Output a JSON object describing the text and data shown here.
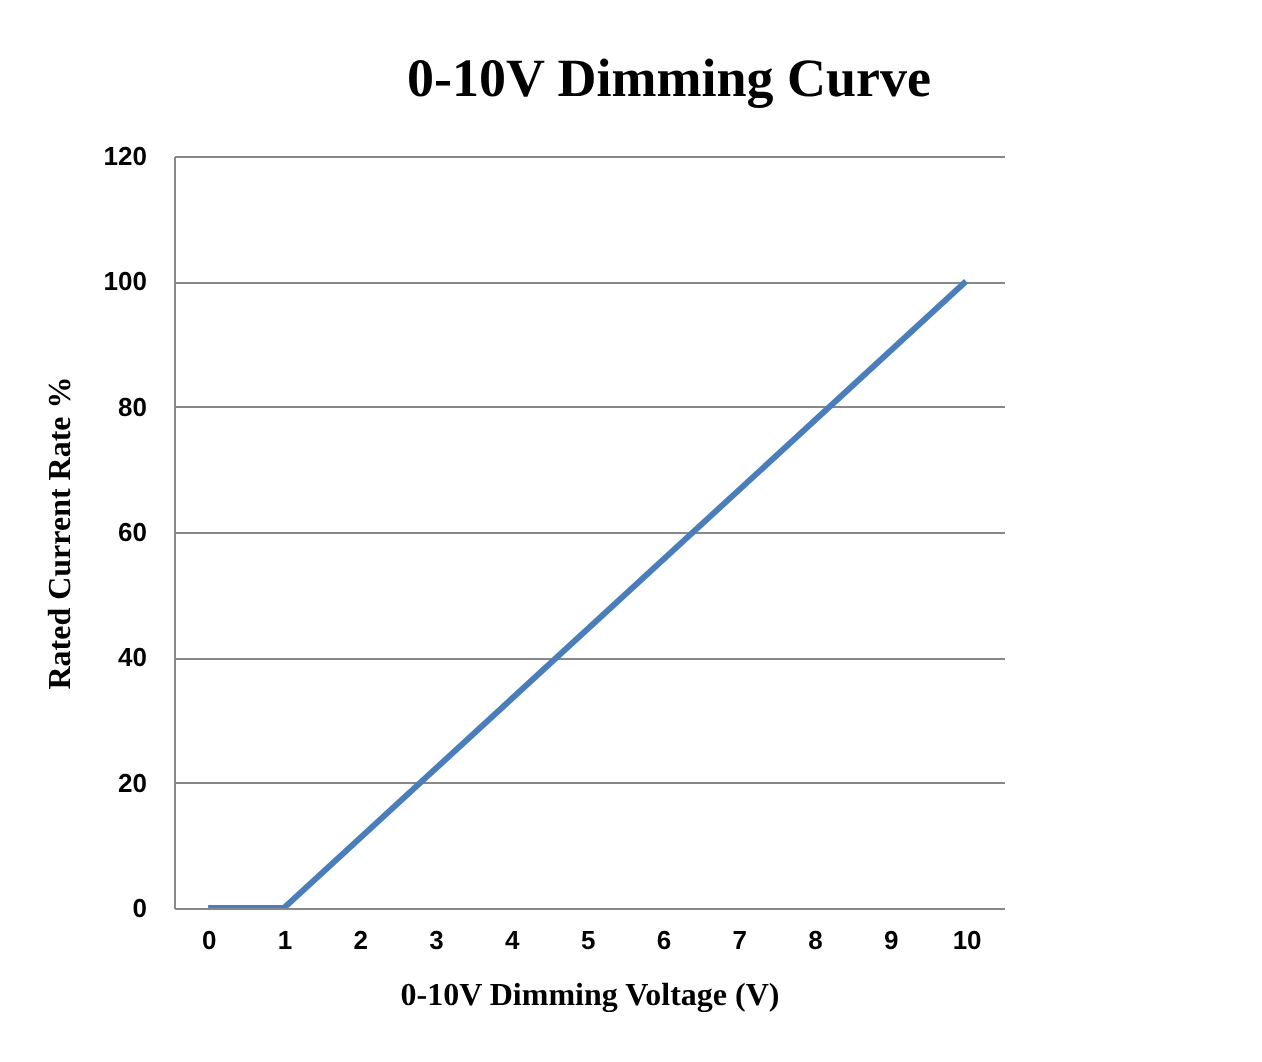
{
  "chart_data": {
    "type": "line",
    "title": "0-10V Dimming Curve",
    "xlabel": "0-10V Dimming Voltage (V)",
    "ylabel": "Rated Current Rate %",
    "x": [
      0,
      1,
      10
    ],
    "series": [
      {
        "color": "#4a7ebb",
        "values": [
          0,
          0,
          100
        ]
      }
    ],
    "xlim": [
      -0.45,
      10.5
    ],
    "xticks": [
      0,
      1,
      2,
      3,
      4,
      5,
      6,
      7,
      8,
      9,
      10
    ],
    "ylim": [
      0,
      120
    ],
    "yticks": [
      0,
      20,
      40,
      60,
      80,
      100,
      120
    ],
    "grid": "y",
    "marker": "none",
    "line_style": "solid"
  }
}
